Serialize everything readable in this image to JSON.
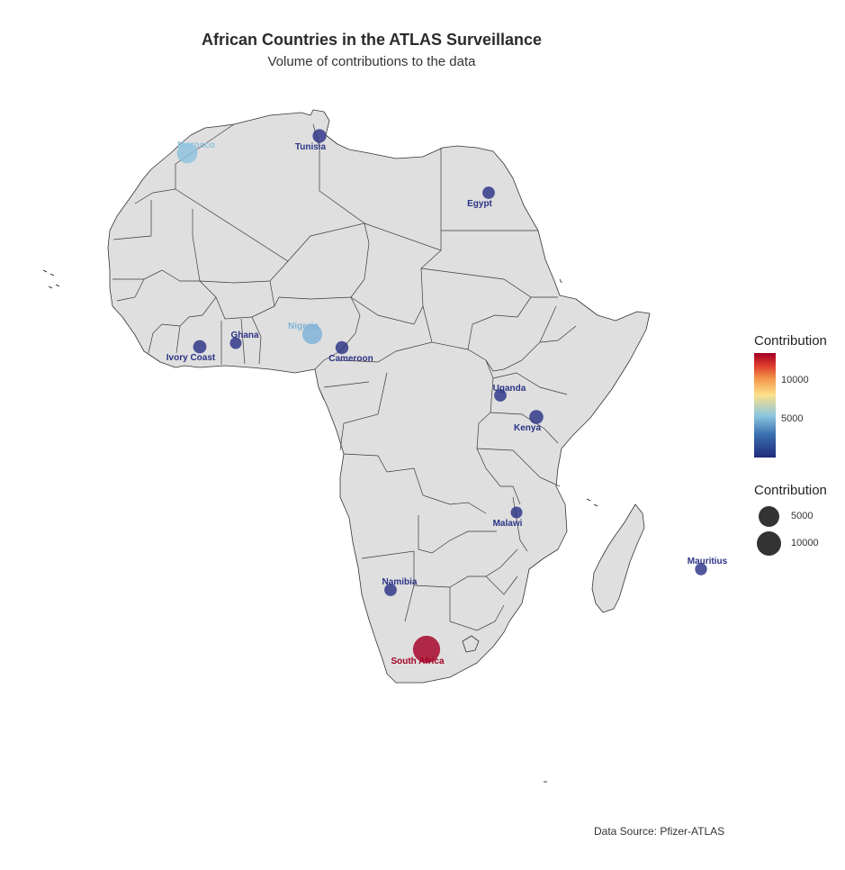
{
  "title": "African Countries in the ATLAS Surveillance",
  "subtitle": "Volume of contributions to the data",
  "caption": "Data Source: Pfizer-ATLAS",
  "legend": {
    "color_title": "Contribution",
    "color_ticks": [
      "10000",
      "5000"
    ],
    "size_title": "Contribution",
    "size_ticks": [
      "5000",
      "10000"
    ]
  },
  "colors": {
    "low": "#23297a",
    "mid": "#8cc7de",
    "high": "#a50026",
    "land": "#dfdfdf",
    "border": "#333333"
  },
  "countries": [
    {
      "name": "Morocco",
      "contribution": 5600,
      "color": "#8ec3df"
    },
    {
      "name": "Tunisia",
      "contribution": 900,
      "color": "#2b3386"
    },
    {
      "name": "Egypt",
      "contribution": 500,
      "color": "#2b3386"
    },
    {
      "name": "Nigeria",
      "contribution": 5200,
      "color": "#7fb2d8"
    },
    {
      "name": "Ghana",
      "contribution": 300,
      "color": "#2b3386"
    },
    {
      "name": "Ivory Coast",
      "contribution": 800,
      "color": "#2b3386"
    },
    {
      "name": "Cameroon",
      "contribution": 700,
      "color": "#2b3386"
    },
    {
      "name": "Uganda",
      "contribution": 500,
      "color": "#2b3386"
    },
    {
      "name": "Kenya",
      "contribution": 1100,
      "color": "#2b3386"
    },
    {
      "name": "Malawi",
      "contribution": 300,
      "color": "#2b3386"
    },
    {
      "name": "Namibia",
      "contribution": 500,
      "color": "#2b3386"
    },
    {
      "name": "South Africa",
      "contribution": 14000,
      "color": "#a50026"
    },
    {
      "name": "Mauritius",
      "contribution": 400,
      "color": "#2b3386"
    }
  ]
}
